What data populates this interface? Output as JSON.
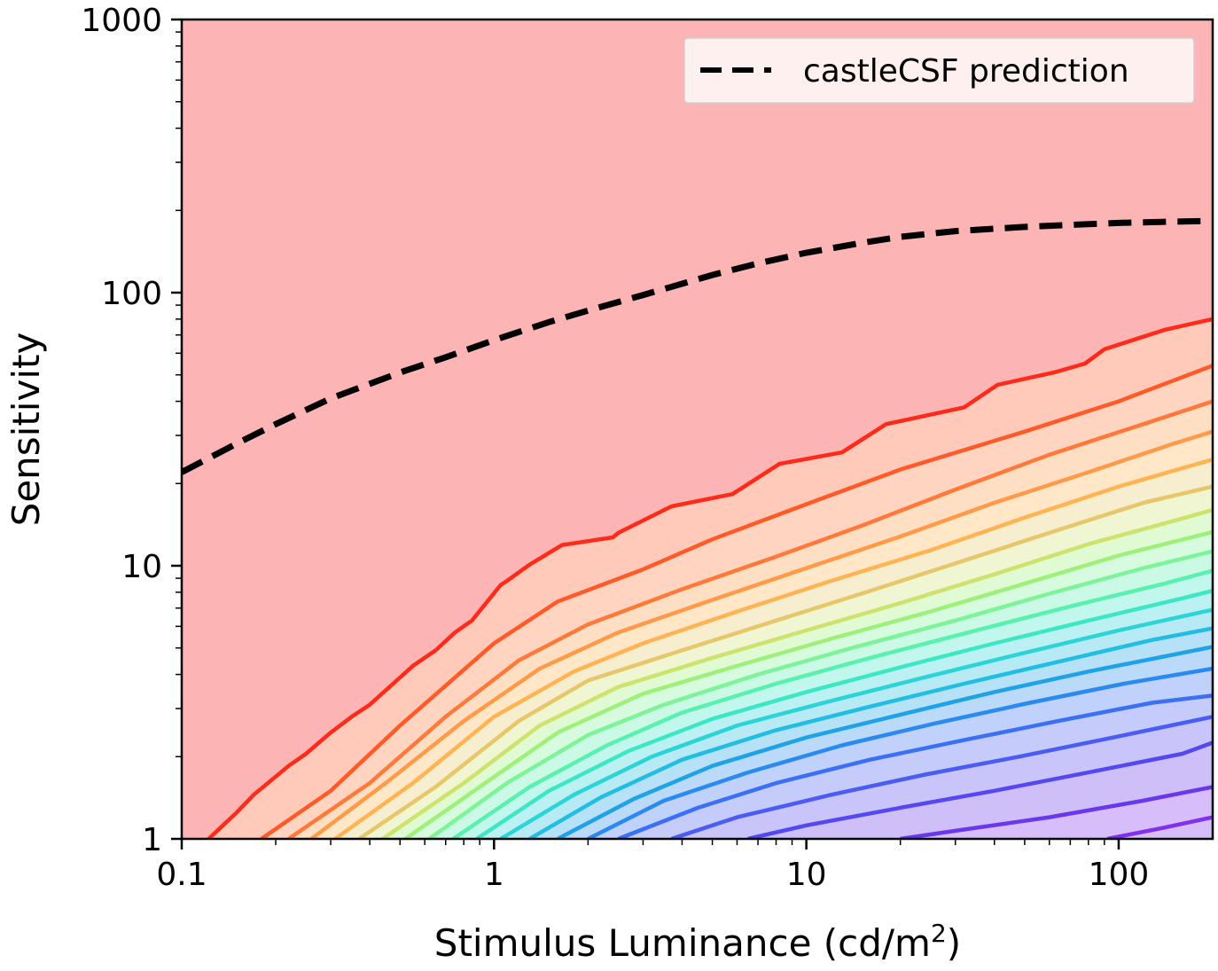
{
  "chart_data": {
    "type": "line",
    "xlabel": {
      "main": "Stimulus Luminance (cd/m",
      "sup": "2",
      "tail": ")"
    },
    "ylabel": "Sensitivity",
    "x_scale": "log",
    "y_scale": "log",
    "xlim": [
      0.1,
      200
    ],
    "ylim": [
      1,
      1000
    ],
    "x_ticks": [
      {
        "value": 0.1,
        "label": "0.1"
      },
      {
        "value": 1,
        "label": "1"
      },
      {
        "value": 10,
        "label": "10"
      },
      {
        "value": 100,
        "label": "100"
      }
    ],
    "y_ticks": [
      {
        "value": 1,
        "label": "1"
      },
      {
        "value": 10,
        "label": "10"
      },
      {
        "value": 100,
        "label": "100"
      },
      {
        "value": 1000,
        "label": "1000"
      }
    ],
    "grid": false,
    "legend": {
      "position": "top-right",
      "entries": [
        {
          "label": "castleCSF prediction",
          "style": "dashed",
          "color": "#000000"
        }
      ]
    },
    "background_color": "#fcb4b4",
    "series": [
      {
        "name": "castleCSF prediction",
        "style": "dashed",
        "color": "#000000",
        "x": [
          0.1,
          0.15,
          0.2,
          0.3,
          0.5,
          0.7,
          1,
          1.5,
          2,
          3,
          5,
          7,
          10,
          15,
          20,
          30,
          50,
          70,
          100,
          150,
          200
        ],
        "y": [
          22,
          28,
          33,
          41,
          51,
          58,
          67,
          78,
          86,
          98,
          116,
          128,
          140,
          152,
          160,
          168,
          174,
          177,
          180,
          182,
          183
        ]
      }
    ],
    "contours": [
      {
        "color": "#ff2b1a",
        "x": [
          0.122,
          0.15,
          0.17,
          0.22,
          0.25,
          0.3,
          0.35,
          0.4,
          0.5,
          0.55,
          0.65,
          0.75,
          0.85,
          1.05,
          1.1,
          1.3,
          1.65,
          2.4,
          2.5,
          3.7,
          5.8,
          8.2,
          13,
          18,
          32,
          41,
          62,
          78,
          90,
          140,
          200
        ],
        "y": [
          1,
          1.25,
          1.45,
          1.85,
          2.05,
          2.45,
          2.8,
          3.1,
          3.9,
          4.3,
          4.9,
          5.7,
          6.3,
          8.5,
          8.8,
          10.1,
          11.9,
          12.7,
          13.2,
          16.5,
          18.3,
          23.6,
          26,
          33,
          38,
          46,
          51,
          55,
          62,
          73,
          80
        ]
      },
      {
        "color": "#ff5a28",
        "x": [
          0.18,
          0.3,
          0.5,
          1,
          1.6,
          3,
          5,
          10,
          20,
          50,
          100,
          200
        ],
        "y": [
          1,
          1.5,
          2.6,
          5.2,
          7.4,
          9.7,
          12.5,
          16.8,
          22.5,
          31,
          40,
          54
        ]
      },
      {
        "color": "#ff7a3a",
        "x": [
          0.22,
          0.4,
          0.7,
          1.2,
          2,
          4,
          8,
          15,
          30,
          60,
          120,
          200
        ],
        "y": [
          1,
          1.6,
          2.8,
          4.5,
          6.1,
          8.2,
          10.8,
          14,
          19,
          25.5,
          33,
          40
        ]
      },
      {
        "color": "#ff9a48",
        "x": [
          0.26,
          0.45,
          0.8,
          1.4,
          2.5,
          5,
          10,
          20,
          40,
          80,
          150,
          200
        ],
        "y": [
          1,
          1.6,
          2.7,
          4.2,
          5.7,
          7.5,
          9.8,
          12.8,
          17,
          22,
          28,
          31
        ]
      },
      {
        "color": "#ffb454",
        "x": [
          0.31,
          0.55,
          1,
          1.8,
          3,
          6,
          12,
          25,
          50,
          100,
          200
        ],
        "y": [
          1,
          1.6,
          2.8,
          4.1,
          5.2,
          6.8,
          8.8,
          11.4,
          15,
          19.5,
          24.5
        ]
      },
      {
        "color": "#e6c86a",
        "x": [
          0.37,
          0.65,
          1.2,
          2,
          4,
          8,
          15,
          30,
          60,
          120,
          200
        ],
        "y": [
          1,
          1.55,
          2.7,
          3.8,
          4.9,
          6.3,
          7.9,
          10.2,
          13.2,
          17,
          19.5
        ]
      },
      {
        "color": "#cde36e",
        "x": [
          0.44,
          0.8,
          1.4,
          2.5,
          5,
          10,
          20,
          40,
          80,
          150,
          200
        ],
        "y": [
          1,
          1.6,
          2.6,
          3.6,
          4.6,
          5.8,
          7.3,
          9.3,
          12,
          14.6,
          16
        ]
      },
      {
        "color": "#9ff07a",
        "x": [
          0.52,
          0.9,
          1.6,
          3,
          6,
          12,
          25,
          50,
          100,
          200
        ],
        "y": [
          1,
          1.55,
          2.45,
          3.4,
          4.3,
          5.4,
          6.8,
          8.6,
          10.9,
          13.3
        ]
      },
      {
        "color": "#7ef39a",
        "x": [
          0.62,
          1.1,
          2,
          3.5,
          7,
          14,
          30,
          60,
          120,
          200
        ],
        "y": [
          1,
          1.6,
          2.4,
          3.1,
          4,
          5,
          6.3,
          7.9,
          9.8,
          11.3
        ]
      },
      {
        "color": "#5af0b0",
        "x": [
          0.74,
          1.3,
          2.3,
          4,
          8,
          16,
          35,
          70,
          140,
          200
        ],
        "y": [
          1,
          1.55,
          2.2,
          2.9,
          3.7,
          4.6,
          5.8,
          7.1,
          8.6,
          9.6
        ]
      },
      {
        "color": "#3de6c4",
        "x": [
          0.88,
          1.5,
          2.7,
          5,
          10,
          20,
          40,
          80,
          160,
          200
        ],
        "y": [
          1,
          1.5,
          2.1,
          2.75,
          3.45,
          4.25,
          5.2,
          6.3,
          7.6,
          8.1
        ]
      },
      {
        "color": "#2cd4d8",
        "x": [
          1.05,
          1.8,
          3.2,
          6,
          12,
          25,
          50,
          100,
          200
        ],
        "y": [
          1,
          1.45,
          2,
          2.6,
          3.2,
          3.95,
          4.8,
          5.8,
          6.9
        ]
      },
      {
        "color": "#22bde2",
        "x": [
          1.3,
          2.2,
          4,
          8,
          16,
          32,
          64,
          128,
          200
        ],
        "y": [
          1,
          1.42,
          1.95,
          2.5,
          3.05,
          3.7,
          4.45,
          5.35,
          5.9
        ]
      },
      {
        "color": "#1fa2e6",
        "x": [
          1.6,
          2.8,
          5,
          10,
          20,
          40,
          80,
          200
        ],
        "y": [
          1,
          1.4,
          1.85,
          2.35,
          2.85,
          3.45,
          4.1,
          5.05
        ]
      },
      {
        "color": "#2a8af0",
        "x": [
          2,
          3.5,
          6.5,
          13,
          26,
          52,
          104,
          200
        ],
        "y": [
          1,
          1.38,
          1.75,
          2.2,
          2.65,
          3.15,
          3.7,
          4.2
        ]
      },
      {
        "color": "#3a70f5",
        "x": [
          2.5,
          4.5,
          8,
          16,
          32,
          64,
          128,
          200
        ],
        "y": [
          1,
          1.3,
          1.6,
          1.95,
          2.3,
          2.7,
          3.15,
          3.35
        ]
      },
      {
        "color": "#4a5cf4",
        "x": [
          3.7,
          6,
          12,
          24,
          48,
          96,
          200
        ],
        "y": [
          1,
          1.2,
          1.45,
          1.72,
          2,
          2.35,
          2.8
        ]
      },
      {
        "color": "#5648f0",
        "x": [
          6.5,
          10,
          20,
          40,
          80,
          160,
          200
        ],
        "y": [
          1,
          1.12,
          1.3,
          1.5,
          1.75,
          2.05,
          2.25
        ]
      },
      {
        "color": "#6a38ec",
        "x": [
          20,
          30,
          60,
          120,
          200
        ],
        "y": [
          1,
          1.07,
          1.2,
          1.38,
          1.55
        ]
      },
      {
        "color": "#8230ee",
        "x": [
          92,
          140,
          200
        ],
        "y": [
          1,
          1.1,
          1.2
        ]
      }
    ]
  }
}
